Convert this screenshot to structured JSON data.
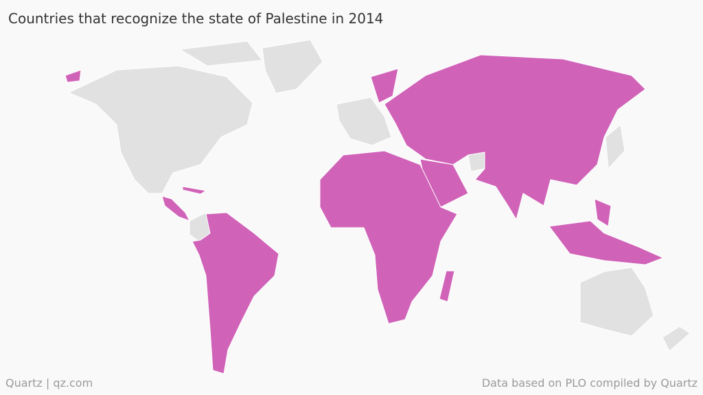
{
  "header": {
    "title": "Countries that recognize the state of Palestine in 2014"
  },
  "footer": {
    "credit": "Quartz | qz.com",
    "source": "Data based on PLO compiled by Quartz"
  }
}
